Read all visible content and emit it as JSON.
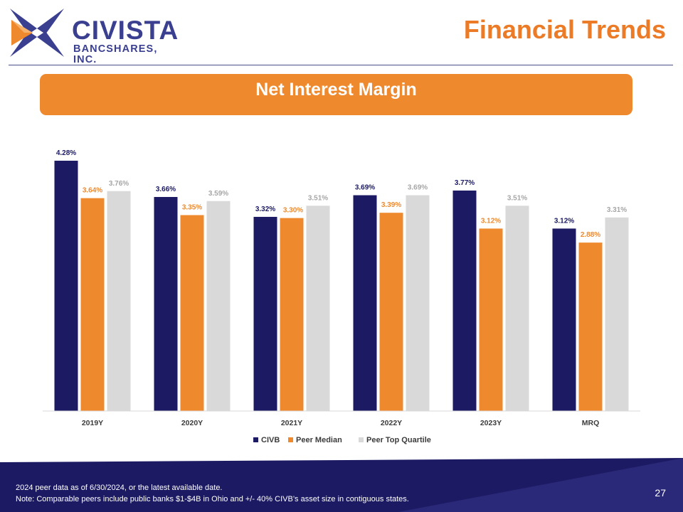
{
  "header": {
    "logo_name": "CIVISTA",
    "logo_sub": "BANCSHARES, INC.",
    "page_title": "Financial Trends"
  },
  "banner": {
    "title": "Net Interest Margin"
  },
  "colors": {
    "civb": "#1c1a63",
    "peer_median": "#ef892e",
    "peer_top_quartile": "#d9d9d9",
    "title_orange": "#ec7b28",
    "footer_navy": "#1c1a63"
  },
  "chart_data": {
    "type": "bar",
    "categories": [
      "2019Y",
      "2020Y",
      "2021Y",
      "2022Y",
      "2023Y",
      "MRQ"
    ],
    "series": [
      {
        "name": "CIVB",
        "values": [
          4.28,
          3.66,
          3.32,
          3.69,
          3.77,
          3.12
        ],
        "labels": [
          "4.28%",
          "3.66%",
          "3.32%",
          "3.69%",
          "3.77%",
          "3.12%"
        ]
      },
      {
        "name": "Peer Median",
        "values": [
          3.64,
          3.35,
          3.3,
          3.39,
          3.12,
          2.88
        ],
        "labels": [
          "3.64%",
          "3.35%",
          "3.30%",
          "3.39%",
          "3.12%",
          "2.88%"
        ]
      },
      {
        "name": "Peer Top Quartile",
        "values": [
          3.76,
          3.59,
          3.51,
          3.69,
          3.51,
          3.31
        ],
        "labels": [
          "3.76%",
          "3.59%",
          "3.51%",
          "3.69%",
          "3.51%",
          "3.31%"
        ]
      }
    ],
    "ylim": [
      0,
      4.5
    ],
    "grid": false,
    "legend": "bottom-center"
  },
  "footer": {
    "note1": "2024 peer data as of  6/30/2024, or the latest available date.",
    "note2": "Note: Comparable peers include public banks $1-$4B in Ohio and +/- 40% CIVB’s asset size in contiguous states.",
    "page_number": "27"
  }
}
